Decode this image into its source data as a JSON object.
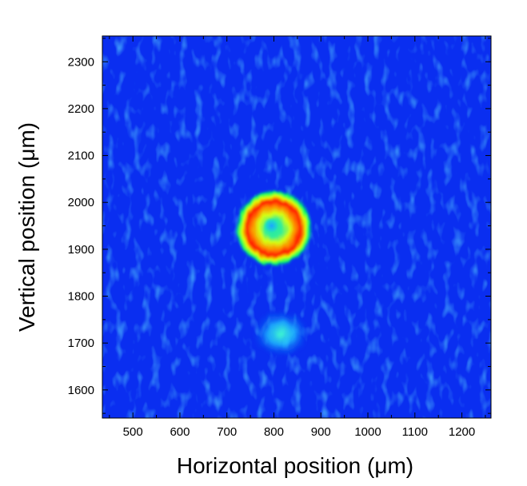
{
  "chart_data": {
    "type": "heatmap",
    "title": "",
    "xlabel": "Horizontal position (μm)",
    "ylabel": "Vertical position (μm)",
    "xlim": [
      435,
      1262
    ],
    "ylim": [
      1540,
      2355
    ],
    "x_ticks": [
      500,
      600,
      700,
      800,
      900,
      1000,
      1100,
      1200
    ],
    "y_ticks": [
      1600,
      1700,
      1800,
      1900,
      2000,
      2100,
      2200,
      2300
    ],
    "x_tick_labels": [
      "500",
      "600",
      "700",
      "800",
      "900",
      "1000",
      "1100",
      "1200"
    ],
    "y_tick_labels": [
      "1600",
      "1700",
      "1800",
      "1900",
      "2000",
      "2100",
      "2200",
      "2300"
    ],
    "colormap": [
      "#0022ee",
      "#00aaff",
      "#00ff88",
      "#ffff00",
      "#ff0000"
    ],
    "background_color": "#0a2ef0",
    "grid": false,
    "features": [
      {
        "shape": "ring",
        "center": [
          800,
          1945
        ],
        "radius": 58,
        "width": 26,
        "peak_intensity": 1.0
      },
      {
        "shape": "spot",
        "center": [
          795,
          1950
        ],
        "radius": 10,
        "peak_intensity": 0.4
      },
      {
        "shape": "spot",
        "center": [
          815,
          1720
        ],
        "radius": 50,
        "peak_intensity": 0.35
      }
    ]
  }
}
